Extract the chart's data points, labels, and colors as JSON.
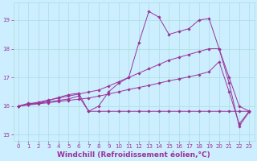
{
  "xlabel": "Windchill (Refroidissement éolien,°C)",
  "bg_color": "#cceeff",
  "grid_color": "#aadddd",
  "line_color": "#993399",
  "xlim": [
    -0.5,
    23.5
  ],
  "ylim": [
    14.8,
    19.6
  ],
  "yticks": [
    15,
    16,
    17,
    18,
    19
  ],
  "xticks": [
    0,
    1,
    2,
    3,
    4,
    5,
    6,
    7,
    8,
    9,
    10,
    11,
    12,
    13,
    14,
    15,
    16,
    17,
    18,
    19,
    20,
    21,
    22,
    23
  ],
  "series1": [
    16.0,
    16.1,
    16.1,
    16.2,
    16.3,
    16.4,
    16.45,
    15.82,
    16.0,
    16.5,
    16.8,
    17.0,
    18.2,
    19.3,
    19.1,
    18.5,
    18.6,
    18.7,
    19.0,
    19.05,
    18.0,
    16.8,
    15.3,
    15.8
  ],
  "series2": [
    16.0,
    16.05,
    16.1,
    16.15,
    16.2,
    16.25,
    16.35,
    15.82,
    15.82,
    15.82,
    15.82,
    15.82,
    15.82,
    15.82,
    15.82,
    15.82,
    15.82,
    15.82,
    15.82,
    15.82,
    15.82,
    15.82,
    15.82,
    15.82
  ],
  "series3": [
    16.0,
    16.07,
    16.14,
    16.21,
    16.28,
    16.35,
    16.42,
    16.49,
    16.56,
    16.7,
    16.85,
    17.0,
    17.15,
    17.3,
    17.45,
    17.6,
    17.7,
    17.8,
    17.9,
    18.0,
    18.0,
    17.0,
    16.0,
    15.82
  ],
  "series4": [
    16.0,
    16.04,
    16.08,
    16.12,
    16.16,
    16.2,
    16.24,
    16.28,
    16.35,
    16.42,
    16.5,
    16.58,
    16.65,
    16.72,
    16.8,
    16.88,
    16.95,
    17.02,
    17.1,
    17.2,
    17.55,
    16.5,
    15.38,
    15.82
  ],
  "marker_size": 1.8,
  "font_color": "#993399",
  "tick_fontsize": 5.0,
  "xlabel_fontsize": 6.5,
  "linewidth": 0.7
}
